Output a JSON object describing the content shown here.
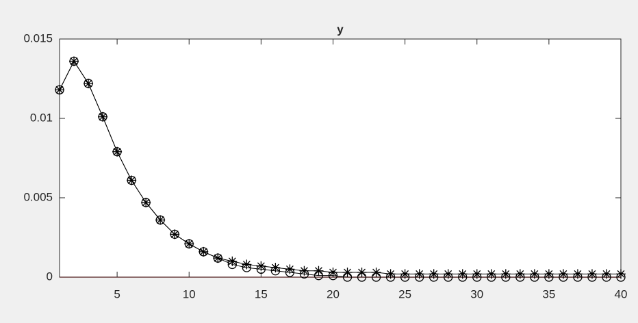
{
  "chart_data": {
    "type": "line",
    "title": "y",
    "x": [
      1,
      2,
      3,
      4,
      5,
      6,
      7,
      8,
      9,
      10,
      11,
      12,
      13,
      14,
      15,
      16,
      17,
      18,
      19,
      20,
      21,
      22,
      23,
      24,
      25,
      26,
      27,
      28,
      29,
      30,
      31,
      32,
      33,
      34,
      35,
      36,
      37,
      38,
      39,
      40
    ],
    "series": [
      {
        "marker": "asterisk",
        "color": "#000000",
        "values": [
          0.0118,
          0.0136,
          0.0122,
          0.0101,
          0.0079,
          0.0061,
          0.0047,
          0.0036,
          0.0027,
          0.0021,
          0.0016,
          0.0012,
          0.001,
          0.0008,
          0.0007,
          0.0006,
          0.0005,
          0.0004,
          0.0004,
          0.0003,
          0.0003,
          0.0003,
          0.0003,
          0.0002,
          0.0002,
          0.0002,
          0.0002,
          0.0002,
          0.0002,
          0.0002,
          0.0002,
          0.0002,
          0.0002,
          0.0002,
          0.0002,
          0.0002,
          0.0002,
          0.0002,
          0.0002,
          0.0002
        ]
      },
      {
        "marker": "circle",
        "color": "#000000",
        "values": [
          0.0118,
          0.0136,
          0.0122,
          0.0101,
          0.0079,
          0.0061,
          0.0047,
          0.0036,
          0.0027,
          0.0021,
          0.0016,
          0.0012,
          0.0008,
          0.0006,
          0.0005,
          0.0004,
          0.0003,
          0.0002,
          0.0001,
          0.0001,
          0,
          0,
          0,
          0,
          0,
          0,
          0,
          0,
          0,
          0,
          0,
          0,
          0,
          0,
          0,
          0,
          0,
          0,
          0,
          0
        ]
      }
    ],
    "reference_line": {
      "value": 0,
      "color": "#ff0000"
    },
    "xlim": [
      1,
      40
    ],
    "ylim": [
      0,
      0.015
    ],
    "xticks": [
      5,
      10,
      15,
      20,
      25,
      30,
      35,
      40
    ],
    "yticks": [
      0,
      0.005,
      0.01,
      0.015
    ]
  }
}
